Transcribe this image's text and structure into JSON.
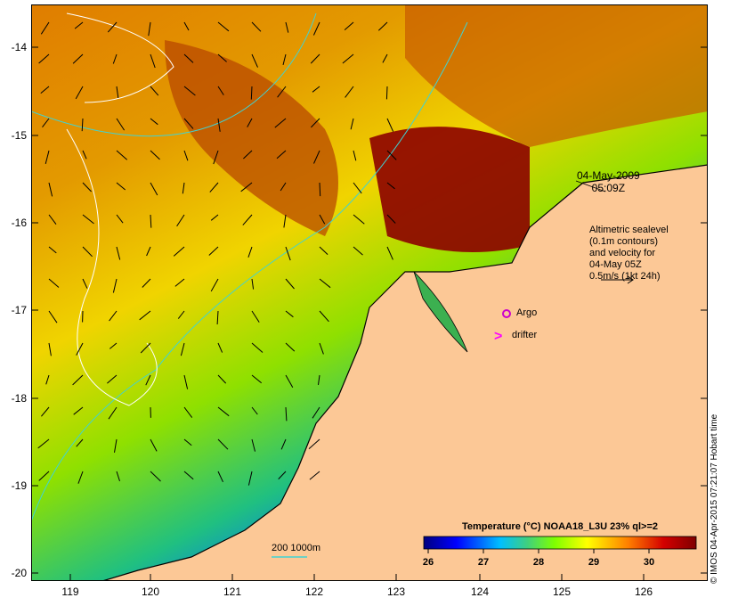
{
  "map": {
    "timestamp_lines": [
      "04-May-2009",
      "05:09Z"
    ],
    "altimetry_note": [
      "Altimetric sealevel",
      "(0.1m contours)",
      "and velocity for",
      "04-May 05Z",
      "0.5m/s (1kt 24h)"
    ],
    "argo_label": "Argo",
    "drifter_label": "drifter",
    "scale_label": "200  1000m",
    "colorbar_title": "Temperature (°C) NOAA18_L3U 23% ql>=2",
    "colorbar_ticks": [
      "26",
      "27",
      "28",
      "29",
      "30"
    ],
    "colorbar_colors": [
      "#00007f",
      "#0000ff",
      "#00bfff",
      "#3fd07f",
      "#7fff00",
      "#ffff00",
      "#ff7f00",
      "#d40000",
      "#7f0000"
    ],
    "credit": "© IMOS 04-Apr-2015 07:21:07 Hobart time",
    "lat_labels": [
      "-14",
      "-15",
      "-16",
      "-17",
      "-18",
      "-19",
      "-20"
    ],
    "lon_labels": [
      "119",
      "120",
      "121",
      "122",
      "123",
      "124",
      "125",
      "126"
    ],
    "colors": {
      "land": "#fcc896",
      "contour": "#3fd3d3",
      "argo": "#cc00cc"
    }
  }
}
